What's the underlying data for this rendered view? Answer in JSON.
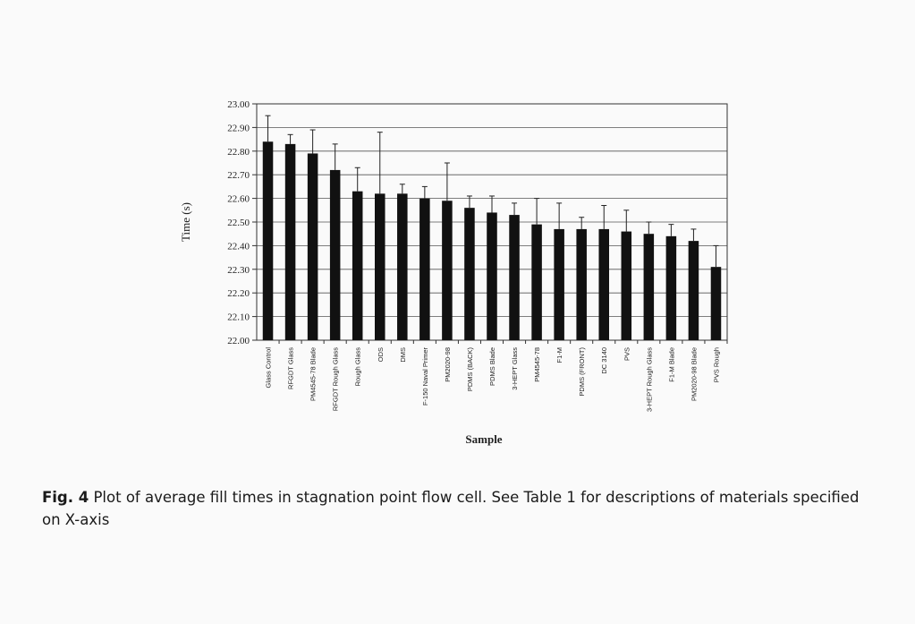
{
  "chart_data": {
    "type": "bar",
    "title": "",
    "xlabel": "Sample",
    "ylabel": "Time (s)",
    "ylim": [
      22.0,
      23.0
    ],
    "yticks": [
      "23.00",
      "22.90",
      "22.80",
      "22.70",
      "22.60",
      "22.50",
      "22.40",
      "22.30",
      "22.20",
      "22.10",
      "22.00"
    ],
    "grid": true,
    "legend": "none",
    "bar_color": "#111111",
    "categories": [
      "Glass Control",
      "RFGDT Glass",
      "PM4545-78 Blade",
      "RFGDT Rough Glass",
      "Rough Glass",
      "ODS",
      "DMS",
      "F-150 Naval Primer",
      "PM2020-98",
      "PDMS (BACK)",
      "PDMS Blade",
      "3-HEPT Glass",
      "PM4545-78",
      "F1-M",
      "PDMS (FRONT)",
      "DC 3140",
      "PVS",
      "3-HEPT Rough Glass",
      "F1-M Blade",
      "PM2020-98 Blade",
      "PVS Rough"
    ],
    "values": [
      22.84,
      22.83,
      22.79,
      22.72,
      22.63,
      22.62,
      22.62,
      22.6,
      22.59,
      22.56,
      22.54,
      22.53,
      22.49,
      22.47,
      22.47,
      22.47,
      22.46,
      22.45,
      22.44,
      22.42,
      22.31
    ],
    "error": [
      0.11,
      0.04,
      0.1,
      0.11,
      0.1,
      0.26,
      0.04,
      0.05,
      0.16,
      0.05,
      0.07,
      0.05,
      0.11,
      0.11,
      0.05,
      0.1,
      0.09,
      0.05,
      0.05,
      0.05,
      0.09
    ]
  },
  "caption": {
    "label": "Fig. 4",
    "text": " Plot of average fill times in stagnation point flow cell. See Table 1 for descriptions of materials specified on X-axis"
  }
}
